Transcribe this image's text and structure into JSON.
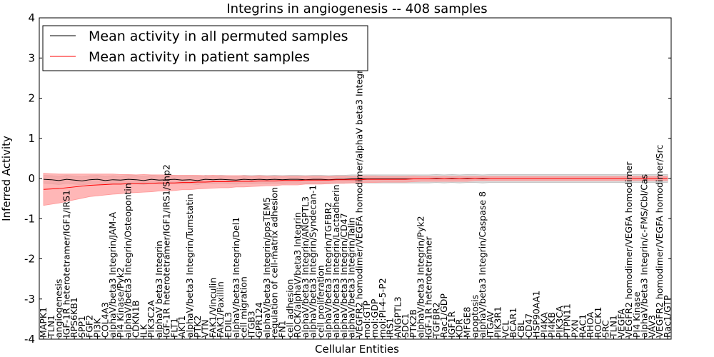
{
  "chart_data": {
    "type": "line",
    "title": "Integrins in angiogenesis -- 408 samples",
    "xlabel": "Cellular Entities",
    "ylabel": "Inferred Activity",
    "ylim": [
      -4,
      4
    ],
    "yticks": [
      "-4",
      "-3",
      "-2",
      "-1",
      "0",
      "1",
      "2",
      "3",
      "4"
    ],
    "grid": false,
    "legend_position": "top-left",
    "categories": [
      "MAPK1",
      "TLN1",
      "angiogenesis",
      "IGF-1R heterotetramer/IGF1/IRS1",
      "RPS6KB1",
      "SPP1",
      "FGF2",
      "PI3K",
      "COL4A3",
      "alphaV/beta3 Integrin/JAM-A",
      "PI4 Kinase/Pyk2",
      "alphaV/beta3 Integrin/Osteopontin",
      "CDKN1B",
      "ILK",
      "PIK3C2A",
      "alphaV beta3 Integrin",
      "IGF-1R heterotetramer/IGF1/IRS1/Shp2",
      "FLT1",
      "AKT1",
      "alphaV/beta3 Integrin/Tumstatin",
      "PTK2",
      "VTN",
      "FAK1/Vinculin",
      "FAK1/Paxillin",
      "EDIL3",
      "alphaV/beta3 Integrin/Del1",
      "cell migration",
      "ITGB3",
      "GPR124",
      "alphaV/beta3 Integrin/ppsTEM5",
      "regulation of cell-matrix adhesion",
      "FN1",
      "cell adhesion",
      "ROCK/alphaV/beta3 Integrin",
      "alphaV/beta3 Integrin/ANGPTL3",
      "alphaV/beta3 Integrin/Syndecan-1",
      "cell proliferation",
      "alphaV/beta3 Integrin/TGFBR2",
      "alphaV/beta3 Integrin/Lactadherin",
      "alphaV/beta3 Integrin/CD47",
      "alphaV/beta3 Integrin/Talin",
      "VEGFR2 homodimer/VEGFA homodimer/alphaV beta3 Integrin",
      "mol:GTP",
      "mol:GDP",
      "mol:PI-4-5-P2",
      "IRS1",
      "ANGPTL3",
      "SDC1",
      "PTK2B",
      "alphaV/beta3 Integrin/Pyk2",
      "IGF-1R heterotetramer",
      "TGFBR2",
      "Rac1/GDP",
      "IGF1R",
      "KDR",
      "MFGE8",
      "apoptosis",
      "alphaV/beta3 Integrin/Caspase 8",
      "ITGAV",
      "PIK3R1",
      "VCL",
      "BCAR1",
      "CBL",
      "CD47",
      "HSP90AA1",
      "PI4KA",
      "PI4KB",
      "PIK3CA",
      "PTPN11",
      "PXN",
      "RAC1",
      "RHOA",
      "ROCK1",
      "SRC",
      "TLN1",
      "VEGFA",
      "VEGFR2 homodimer/VEGFA homodimer",
      "PI4 Kinase",
      "alphaV/beta3 Integrin/c-FMS/Cbl/Cas",
      "VAV3",
      "VEGFR2 homodimer/VEGFA homodimer/Src",
      "Rac1/GTP"
    ],
    "series": [
      {
        "name": "Mean activity in all permuted samples",
        "color": "#000000",
        "band_color": "#c0c0c0",
        "values": [
          -0.02,
          -0.03,
          -0.05,
          -0.02,
          -0.04,
          -0.06,
          -0.03,
          -0.02,
          -0.05,
          -0.03,
          -0.04,
          -0.02,
          -0.03,
          -0.05,
          -0.02,
          -0.04,
          -0.03,
          -0.02,
          -0.04,
          -0.03,
          -0.05,
          -0.02,
          -0.03,
          -0.02,
          -0.03,
          -0.04,
          -0.02,
          -0.03,
          -0.02,
          -0.03,
          -0.02,
          -0.03,
          -0.02,
          -0.02,
          -0.03,
          -0.02,
          -0.02,
          -0.03,
          -0.02,
          -0.02,
          -0.01,
          -0.01,
          -0.01,
          -0.01,
          -0.01,
          -0.01,
          -0.01,
          -0.01,
          -0.01,
          -0.01,
          -0.01,
          0.0,
          -0.01,
          0.0,
          -0.01,
          0.0,
          0.0,
          -0.01,
          0.0,
          0.0,
          0.0,
          0.0,
          0.0,
          0.0,
          0.0,
          0.0,
          0.0,
          0.0,
          0.0,
          0.0,
          0.0,
          0.0,
          0.0,
          0.0,
          0.0,
          0.0,
          0.0,
          0.0,
          0.0,
          0.0,
          0.0,
          0.0
        ],
        "band_half_width": [
          0.1,
          0.1,
          0.1,
          0.1,
          0.1,
          0.1,
          0.1,
          0.1,
          0.1,
          0.1,
          0.1,
          0.1,
          0.1,
          0.1,
          0.1,
          0.1,
          0.1,
          0.1,
          0.1,
          0.1,
          0.1,
          0.1,
          0.1,
          0.1,
          0.1,
          0.1,
          0.1,
          0.1,
          0.1,
          0.1,
          0.1,
          0.1,
          0.1,
          0.1,
          0.1,
          0.1,
          0.1,
          0.1,
          0.1,
          0.1,
          0.1,
          0.1,
          0.1,
          0.1,
          0.1,
          0.1,
          0.1,
          0.1,
          0.1,
          0.1,
          0.1,
          0.1,
          0.1,
          0.1,
          0.1,
          0.1,
          0.1,
          0.1,
          0.1,
          0.1,
          0.1,
          0.1,
          0.1,
          0.1,
          0.1,
          0.1,
          0.1,
          0.1,
          0.1,
          0.1,
          0.1,
          0.1,
          0.1,
          0.1,
          0.1,
          0.1,
          0.1,
          0.1,
          0.1,
          0.1,
          0.1,
          0.1
        ]
      },
      {
        "name": "Mean activity in patient samples",
        "color": "#ff0000",
        "band_color": "#ff9999",
        "values": [
          -0.27,
          -0.26,
          -0.25,
          -0.23,
          -0.21,
          -0.19,
          -0.17,
          -0.16,
          -0.15,
          -0.14,
          -0.14,
          -0.13,
          -0.13,
          -0.12,
          -0.12,
          -0.11,
          -0.11,
          -0.11,
          -0.1,
          -0.1,
          -0.09,
          -0.09,
          -0.08,
          -0.08,
          -0.08,
          -0.07,
          -0.07,
          -0.07,
          -0.06,
          -0.06,
          -0.06,
          -0.05,
          -0.05,
          -0.05,
          -0.04,
          -0.04,
          -0.04,
          -0.04,
          -0.03,
          -0.03,
          -0.03,
          -0.03,
          -0.02,
          -0.02,
          -0.02,
          -0.02,
          -0.02,
          -0.02,
          -0.01,
          -0.01,
          -0.01,
          -0.01,
          -0.01,
          -0.01,
          -0.01,
          -0.01,
          0.0,
          0.0,
          0.0,
          0.0,
          0.0,
          0.0,
          0.0,
          0.0,
          0.0,
          0.0,
          0.0,
          0.0,
          0.0,
          0.0,
          0.0,
          0.0,
          0.0,
          0.0,
          0.0,
          0.0,
          0.0,
          0.0,
          0.0,
          0.0,
          0.0,
          0.0
        ],
        "band_half_width": [
          0.4,
          0.38,
          0.36,
          0.34,
          0.32,
          0.3,
          0.28,
          0.27,
          0.26,
          0.25,
          0.24,
          0.23,
          0.22,
          0.22,
          0.21,
          0.2,
          0.2,
          0.19,
          0.18,
          0.18,
          0.17,
          0.16,
          0.16,
          0.15,
          0.15,
          0.14,
          0.14,
          0.13,
          0.13,
          0.12,
          0.12,
          0.11,
          0.11,
          0.11,
          0.1,
          0.1,
          0.1,
          0.09,
          0.09,
          0.09,
          0.08,
          0.08,
          0.08,
          0.08,
          0.07,
          0.07,
          0.07,
          0.07,
          0.07,
          0.06,
          0.06,
          0.06,
          0.06,
          0.06,
          0.06,
          0.06,
          0.05,
          0.05,
          0.05,
          0.05,
          0.05,
          0.05,
          0.05,
          0.05,
          0.05,
          0.05,
          0.05,
          0.05,
          0.05,
          0.05,
          0.05,
          0.05,
          0.05,
          0.05,
          0.05,
          0.05,
          0.05,
          0.05,
          0.05,
          0.05,
          0.05,
          0.05
        ]
      }
    ]
  }
}
